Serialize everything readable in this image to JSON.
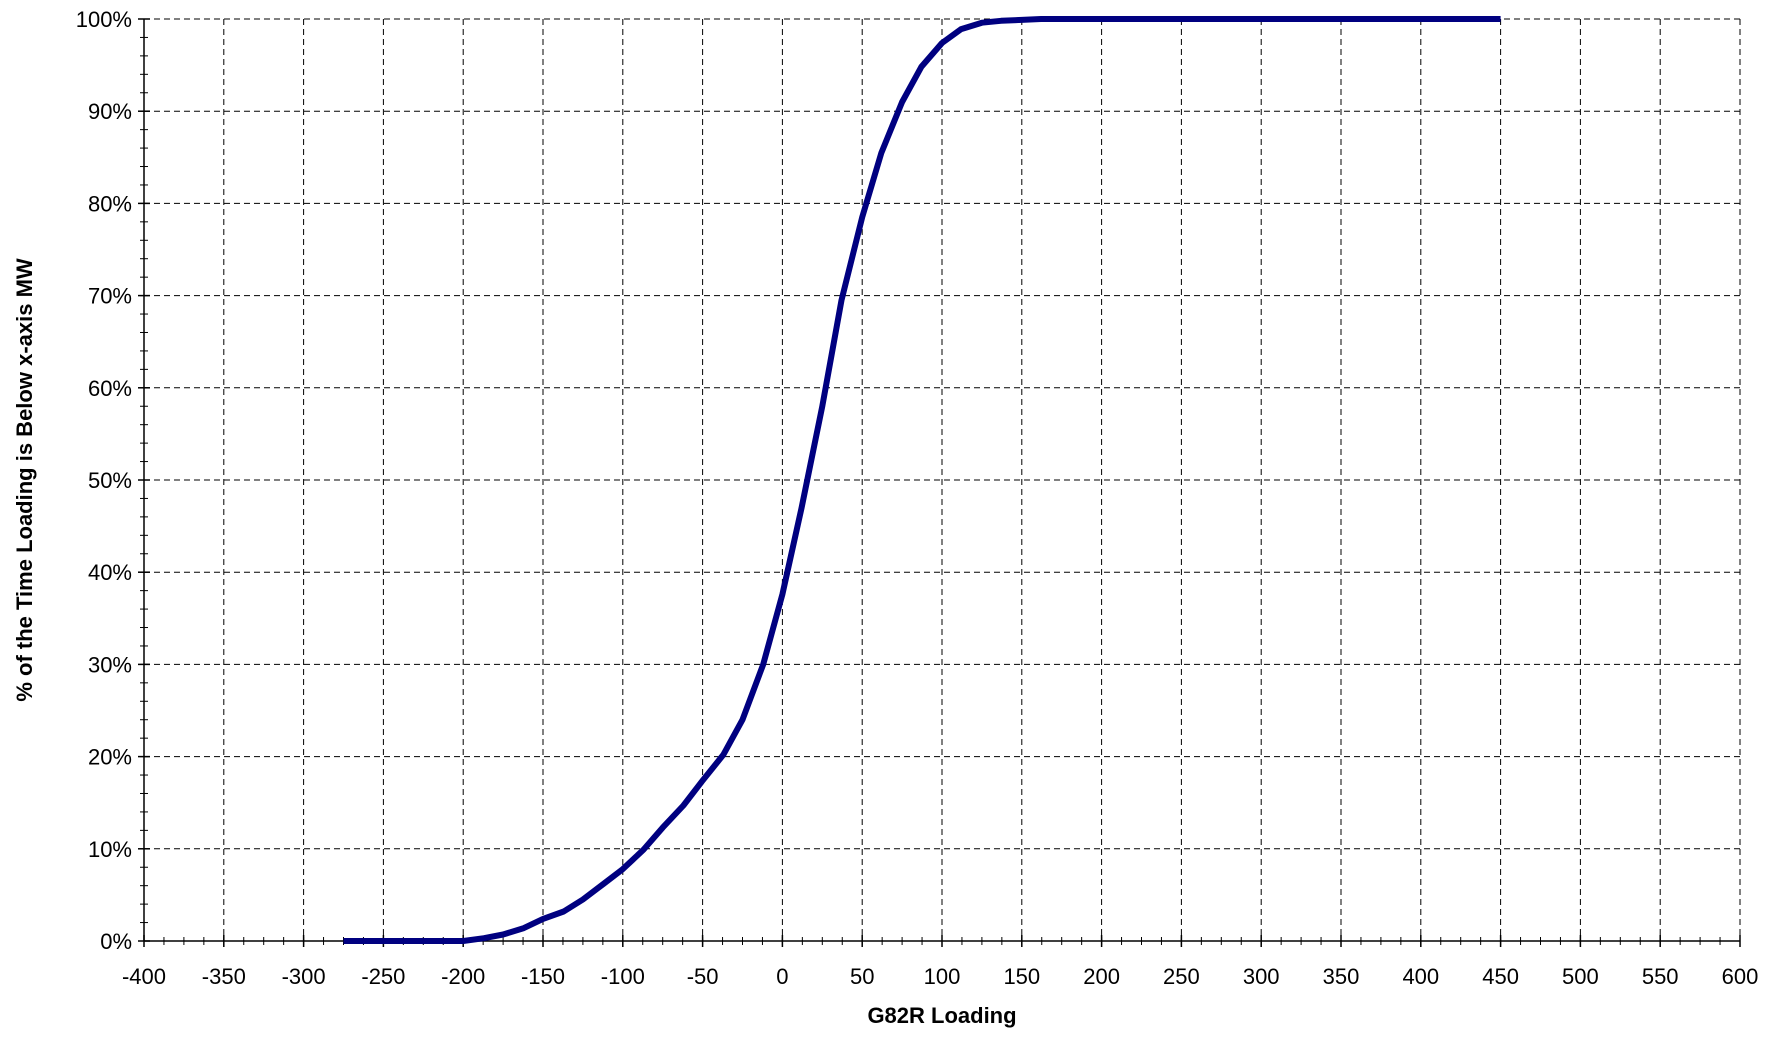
{
  "chart_data": {
    "type": "line",
    "title": "",
    "xlabel": "G82R Loading",
    "ylabel": "% of the Time Loading is Below x-axis MW",
    "xlim": [
      -400,
      600
    ],
    "ylim": [
      0,
      100
    ],
    "x_ticks": [
      "-400",
      "-350",
      "-300",
      "-250",
      "-200",
      "-150",
      "-100",
      "-50",
      "0",
      "50",
      "100",
      "150",
      "200",
      "250",
      "300",
      "350",
      "400",
      "450",
      "500",
      "550",
      "600"
    ],
    "y_ticks": [
      "0%",
      "10%",
      "20%",
      "30%",
      "40%",
      "50%",
      "60%",
      "70%",
      "80%",
      "90%",
      "100%"
    ],
    "grid": true,
    "legend": "none",
    "series": [
      {
        "color": "#000080",
        "points": [
          [
            -275,
            0
          ],
          [
            -262,
            0
          ],
          [
            -250,
            0
          ],
          [
            -237,
            0
          ],
          [
            -225,
            0
          ],
          [
            -212,
            0
          ],
          [
            -200,
            0
          ],
          [
            -187,
            0.3
          ],
          [
            -175,
            0.7
          ],
          [
            -162,
            1.4
          ],
          [
            -150,
            2.4
          ],
          [
            -137,
            3.2
          ],
          [
            -125,
            4.5
          ],
          [
            -112,
            6.2
          ],
          [
            -100,
            7.8
          ],
          [
            -87,
            9.9
          ],
          [
            -75,
            12.3
          ],
          [
            -62,
            14.7
          ],
          [
            -50,
            17.4
          ],
          [
            -37,
            20.2
          ],
          [
            -25,
            24.0
          ],
          [
            -12,
            30.0
          ],
          [
            0,
            37.6
          ],
          [
            12,
            47.0
          ],
          [
            25,
            58.0
          ],
          [
            37,
            69.5
          ],
          [
            50,
            78.5
          ],
          [
            62,
            85.5
          ],
          [
            75,
            91.0
          ],
          [
            87,
            94.8
          ],
          [
            100,
            97.4
          ],
          [
            112,
            98.9
          ],
          [
            125,
            99.6
          ],
          [
            137,
            99.8
          ],
          [
            150,
            99.9
          ],
          [
            162,
            100
          ],
          [
            175,
            100
          ],
          [
            200,
            100
          ],
          [
            250,
            100
          ],
          [
            300,
            100
          ],
          [
            350,
            100
          ],
          [
            400,
            100
          ],
          [
            450,
            100
          ]
        ]
      }
    ]
  }
}
